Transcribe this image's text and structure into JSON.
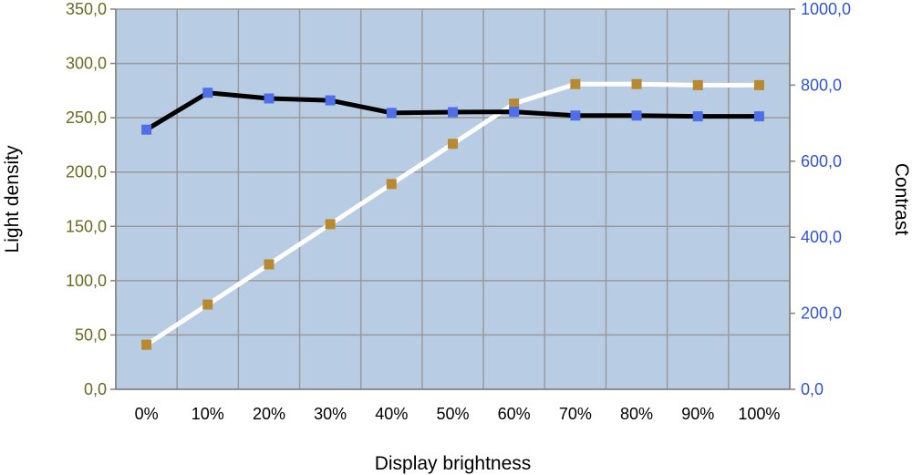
{
  "chart_data": {
    "type": "line",
    "xlabel": "Display brightness",
    "ylabel_left": "Light density",
    "ylabel_right": "Contrast",
    "categories": [
      "0%",
      "10%",
      "20%",
      "30%",
      "40%",
      "50%",
      "60%",
      "70%",
      "80%",
      "90%",
      "100%"
    ],
    "y_left": {
      "min": 0,
      "max": 350,
      "step": 50,
      "tick_labels": [
        "0,0",
        "50,0",
        "100,0",
        "150,0",
        "200,0",
        "250,0",
        "300,0",
        "350,0"
      ]
    },
    "y_right": {
      "min": 0,
      "max": 1000,
      "step": 200,
      "tick_labels": [
        "0,0",
        "200,0",
        "400,0",
        "600,0",
        "800,0",
        "1000,0"
      ]
    },
    "grid": true,
    "legend": "none",
    "series": [
      {
        "axis": "left",
        "line_color": "#ffffff",
        "marker_color": "#b8892f",
        "values": [
          41,
          78,
          115,
          152,
          189,
          226,
          263,
          281,
          281,
          280,
          280
        ]
      },
      {
        "axis": "right",
        "line_color": "#000000",
        "marker_color": "#4f6fe8",
        "values": [
          683,
          780,
          765,
          760,
          727,
          729,
          730,
          720,
          720,
          718,
          718
        ]
      }
    ],
    "colors": {
      "plot_bg": "#b8cce4",
      "grid": "#9a9a9a",
      "left_tick": "#6b6a1e",
      "right_tick": "#2f53d9"
    }
  }
}
